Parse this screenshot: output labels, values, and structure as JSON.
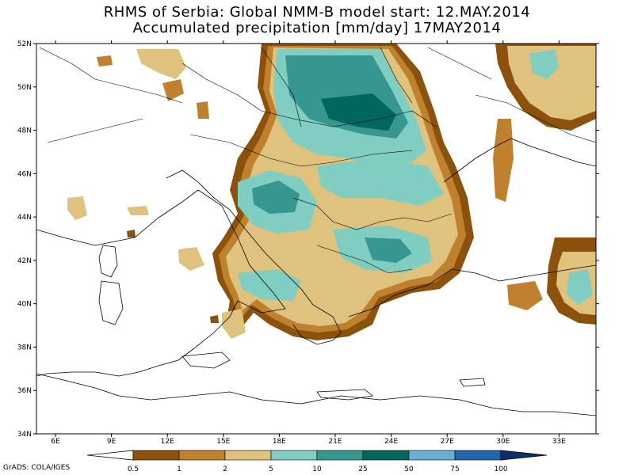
{
  "title": {
    "line1": "RHMS of Serbia: Global NMM-B model    start: 12.MAY.2014",
    "line2": "Accumulated precipitation [mm/day]  17MAY2014"
  },
  "axes": {
    "lat_labels": [
      "52N",
      "50N",
      "48N",
      "46N",
      "44N",
      "42N",
      "40N",
      "38N",
      "36N",
      "34N"
    ],
    "lon_labels": [
      "6E",
      "9E",
      "12E",
      "15E",
      "18E",
      "21E",
      "24E",
      "27E",
      "30E",
      "33E"
    ]
  },
  "colorbar": {
    "labels": [
      "0.5",
      "1",
      "2",
      "5",
      "10",
      "25",
      "50",
      "75",
      "100"
    ],
    "colors": [
      "#ffffff",
      "#8c510a",
      "#bf812d",
      "#dfc27d",
      "#80cdc1",
      "#35978f",
      "#01665e",
      "#6baed6",
      "#2166ac",
      "#08306b"
    ]
  },
  "credit": "GrADS: COLA/IGES"
}
